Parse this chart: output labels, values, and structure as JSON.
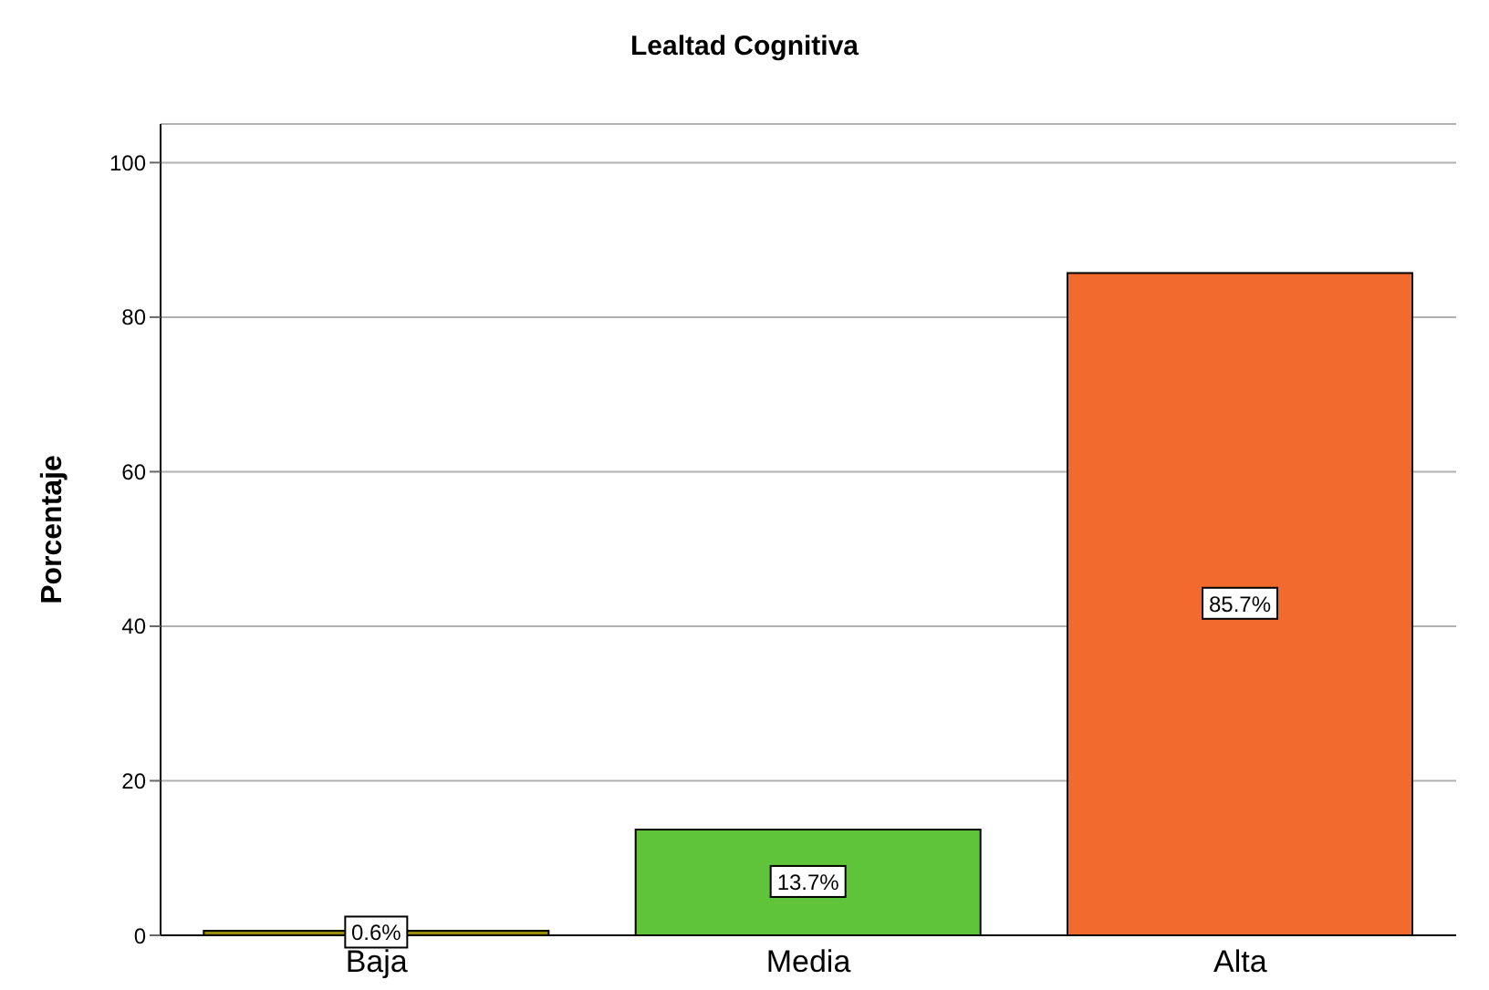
{
  "chart_data": {
    "type": "bar",
    "title": "Lealtad Cognitiva",
    "ylabel": "Porcentaje",
    "categories": [
      "Baja",
      "Media",
      "Alta"
    ],
    "values": [
      0.6,
      13.7,
      85.7
    ],
    "colors": [
      "#9a8c0a",
      "#5fc43a",
      "#f26a2d"
    ],
    "value_labels": [
      "0.6%",
      "13.7%",
      "85.7%"
    ],
    "ylim": [
      0,
      105
    ],
    "yticks": [
      0,
      20,
      40,
      60,
      80,
      100
    ],
    "grid": "y"
  }
}
